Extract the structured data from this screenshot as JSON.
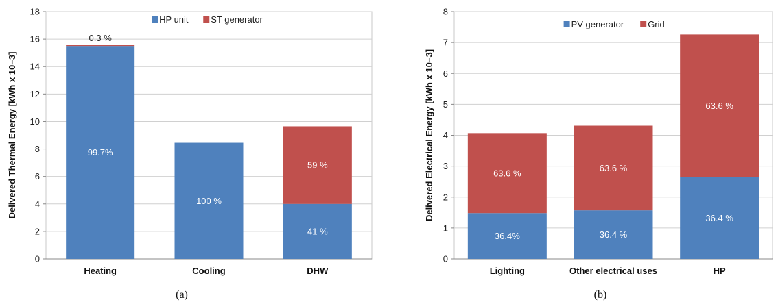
{
  "chart_data": [
    {
      "type": "bar",
      "stacked": true,
      "caption": "(a)",
      "ylabel": "Delivered Thermal Energy  [kWh x 10−3]",
      "ylim": [
        0,
        18
      ],
      "yticks": [
        0,
        2,
        4,
        6,
        8,
        10,
        12,
        14,
        16,
        18
      ],
      "grid": true,
      "legend_position": "top",
      "categories": [
        "Heating",
        "Cooling",
        "DHW"
      ],
      "series": [
        {
          "name": "HP unit",
          "color": "#4f81bd",
          "values": [
            15.5,
            8.45,
            4.0
          ],
          "labels": [
            "99.7%",
            "100 %",
            "41 %"
          ],
          "label_color": "#ffffff"
        },
        {
          "name": "ST generator",
          "color": "#c0504d",
          "values": [
            0.05,
            0,
            5.65
          ],
          "labels": [
            "0.3 %",
            "",
            "59 %"
          ],
          "label_color": "#ffffff"
        }
      ],
      "label_outside_above": [
        true,
        false,
        false
      ]
    },
    {
      "type": "bar",
      "stacked": true,
      "caption": "(b)",
      "ylabel": "Delivered Electrical Energy  [kWh x 10−3]",
      "ylim": [
        0,
        8
      ],
      "yticks": [
        0,
        1,
        2,
        3,
        4,
        5,
        6,
        7,
        8
      ],
      "grid": true,
      "legend_position": "top",
      "categories": [
        "Lighting",
        "Other electrical uses",
        "HP"
      ],
      "series": [
        {
          "name": "PV generator",
          "color": "#4f81bd",
          "values": [
            1.48,
            1.57,
            2.64
          ],
          "labels": [
            "36.4%",
            "36.4 %",
            "36.4 %"
          ],
          "label_color": "#ffffff"
        },
        {
          "name": "Grid",
          "color": "#c0504d",
          "values": [
            2.59,
            2.74,
            4.62
          ],
          "labels": [
            "63.6 %",
            "63.6 %",
            "63.6 %"
          ],
          "label_color": "#ffffff"
        }
      ]
    }
  ]
}
